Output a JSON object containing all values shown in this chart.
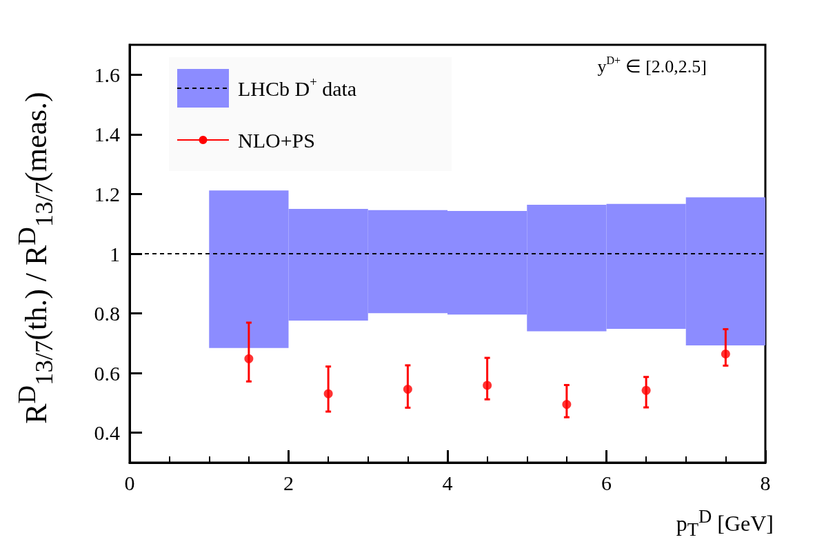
{
  "chart_data": {
    "type": "scatter",
    "xlabel": "p$_{T}$$^{D}$ [GeV]",
    "ylabel": "R$^{D}$$_{13/7}$(th.) / R$^{D}$$_{13/7}$(meas.)",
    "annotations": [
      "y$^{D+}$ ∈ [2.0,2.5]"
    ],
    "series": [
      {
        "name": "LHCb D$^{+}$ data",
        "type": "bar",
        "color": "#8c8cff",
        "x": [
          1.5,
          2.5,
          3.5,
          4.5,
          5.5,
          6.5,
          7.5
        ],
        "base": [
          0.684,
          0.776,
          0.801,
          0.796,
          0.74,
          0.748,
          0.693
        ],
        "values": [
          0.528,
          0.374,
          0.345,
          0.347,
          0.424,
          0.419,
          0.496
        ]
      },
      {
        "name": "NLO+PS",
        "color": "#ff0000",
        "x": [
          1.5,
          2.5,
          3.5,
          4.5,
          5.5,
          6.5,
          7.5
        ],
        "values": [
          0.648,
          0.531,
          0.546,
          0.559,
          0.495,
          0.542,
          0.664
        ],
        "errors": [
          [
            0.572,
            0.769
          ],
          [
            0.471,
            0.622
          ],
          [
            0.484,
            0.626
          ],
          [
            0.512,
            0.651
          ],
          [
            0.452,
            0.56
          ],
          [
            0.485,
            0.587
          ],
          [
            0.625,
            0.747
          ]
        ]
      }
    ],
    "ref_lines": [
      {
        "axis": "y",
        "value": 1,
        "label": null,
        "color": "#000000",
        "line_style": "dashed"
      }
    ],
    "xlim": [
      0,
      8
    ],
    "xticks": [
      0,
      2,
      4,
      6,
      8
    ],
    "ylim": [
      0.3,
      1.7
    ],
    "yticks": [
      0.4,
      0.6,
      0.8,
      1,
      1.2,
      1.4,
      1.6
    ],
    "grid": false,
    "legend": "top left",
    "marker": "circle"
  }
}
